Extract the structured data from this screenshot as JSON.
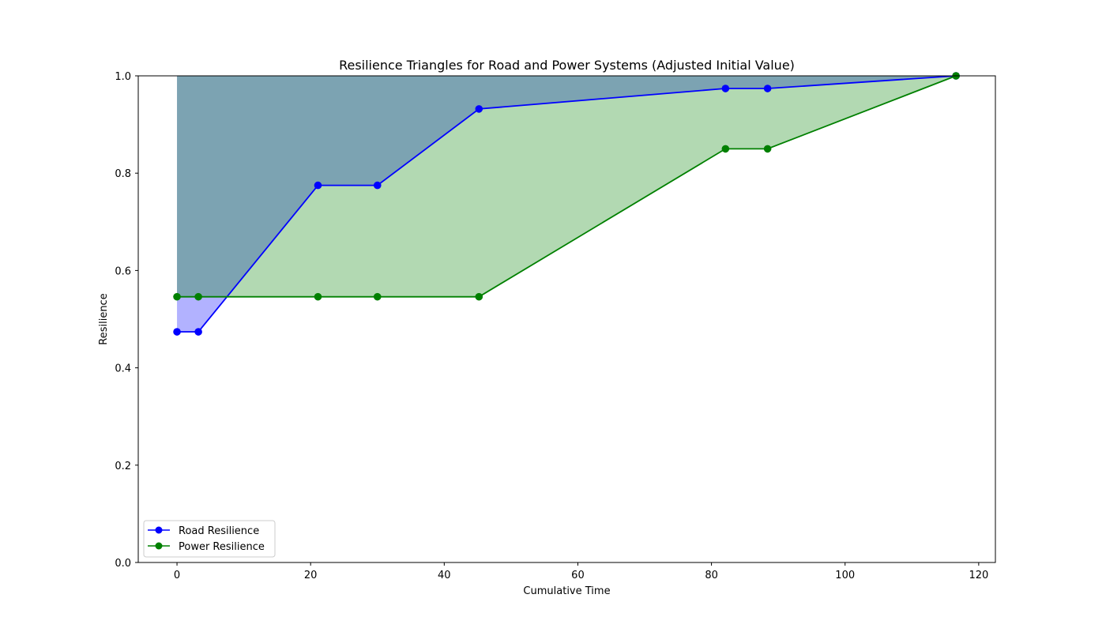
{
  "chart_data": {
    "type": "line",
    "title": "Resilience Triangles for Road and Power Systems (Adjusted Initial Value)",
    "xlabel": "Cumulative Time",
    "ylabel": "Resilience",
    "xlim": [
      -5.8,
      122.5
    ],
    "ylim": [
      0,
      1
    ],
    "xticks": [
      0,
      20,
      40,
      60,
      80,
      100,
      120
    ],
    "yticks": [
      0.0,
      0.2,
      0.4,
      0.6,
      0.8,
      1.0
    ],
    "xtick_labels": [
      "0",
      "20",
      "40",
      "60",
      "80",
      "100",
      "120"
    ],
    "ytick_labels": [
      "0.0",
      "0.2",
      "0.4",
      "0.6",
      "0.8",
      "1.0"
    ],
    "grid": false,
    "legend_position": "lower-left",
    "x": [
      0,
      3.2,
      21.1,
      30.0,
      45.2,
      82.1,
      88.4,
      116.6
    ],
    "series": [
      {
        "name": "Road Resilience",
        "color": "#0000ff",
        "fill_color": "#0000ff",
        "values": [
          0.474,
          0.474,
          0.775,
          0.775,
          0.932,
          0.974,
          0.974,
          1.0
        ]
      },
      {
        "name": "Power Resilience",
        "color": "#008000",
        "fill_color": "#008000",
        "values": [
          0.546,
          0.546,
          0.546,
          0.546,
          0.546,
          0.85,
          0.85,
          1.0
        ]
      }
    ],
    "fill_to": 1.0
  }
}
